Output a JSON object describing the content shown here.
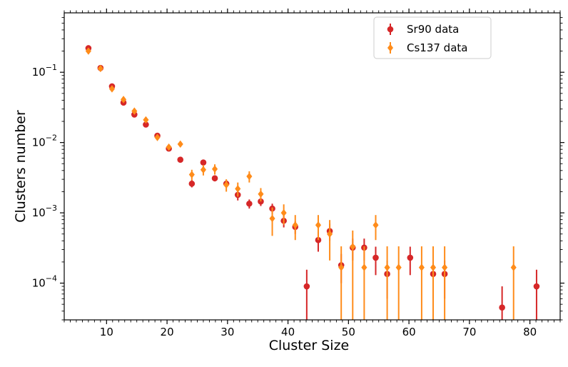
{
  "chart_data": {
    "type": "scatter",
    "title": "",
    "xlabel": "Cluster Size",
    "ylabel": "Clusters number",
    "xscale": "linear",
    "yscale": "log",
    "xlim": [
      3,
      85
    ],
    "ylim": [
      3e-05,
      0.7
    ],
    "xticks": [
      10,
      20,
      30,
      40,
      50,
      60,
      70,
      80
    ],
    "yticks": [
      {
        "value": 0.1,
        "base": "10",
        "exp": "−1"
      },
      {
        "value": 0.01,
        "base": "10",
        "exp": "−2"
      },
      {
        "value": 0.001,
        "base": "10",
        "exp": "−3"
      },
      {
        "value": 0.0001,
        "base": "10",
        "exp": "−4"
      }
    ],
    "grid": false,
    "legend_position": "top-right",
    "series": [
      {
        "name": "Sr90 data",
        "color": "#d62728",
        "marker": "circle",
        "points": [
          {
            "x": 7,
            "y": 0.22,
            "lo": 0.21,
            "hi": 0.23
          },
          {
            "x": 9,
            "y": 0.115,
            "lo": 0.11,
            "hi": 0.12
          },
          {
            "x": 10.9,
            "y": 0.063,
            "lo": 0.06,
            "hi": 0.066
          },
          {
            "x": 12.8,
            "y": 0.037,
            "lo": 0.035,
            "hi": 0.039
          },
          {
            "x": 14.6,
            "y": 0.025,
            "lo": 0.024,
            "hi": 0.026
          },
          {
            "x": 16.5,
            "y": 0.018,
            "lo": 0.017,
            "hi": 0.019
          },
          {
            "x": 18.4,
            "y": 0.0125,
            "lo": 0.012,
            "hi": 0.013
          },
          {
            "x": 20.3,
            "y": 0.0082,
            "lo": 0.0078,
            "hi": 0.0086
          },
          {
            "x": 22.2,
            "y": 0.0057,
            "lo": 0.0054,
            "hi": 0.006
          },
          {
            "x": 24.1,
            "y": 0.0026,
            "lo": 0.0023,
            "hi": 0.0029
          },
          {
            "x": 26,
            "y": 0.0052,
            "lo": 0.0048,
            "hi": 0.0056
          },
          {
            "x": 27.9,
            "y": 0.0031,
            "lo": 0.0028,
            "hi": 0.0034
          },
          {
            "x": 29.8,
            "y": 0.0026,
            "lo": 0.0023,
            "hi": 0.0029
          },
          {
            "x": 31.7,
            "y": 0.0018,
            "lo": 0.0015,
            "hi": 0.0021
          },
          {
            "x": 33.6,
            "y": 0.00135,
            "lo": 0.00115,
            "hi": 0.00155
          },
          {
            "x": 35.5,
            "y": 0.00145,
            "lo": 0.00125,
            "hi": 0.00165
          },
          {
            "x": 37.4,
            "y": 0.00115,
            "lo": 0.00095,
            "hi": 0.00135
          },
          {
            "x": 39.3,
            "y": 0.00077,
            "lo": 0.00062,
            "hi": 0.00092
          },
          {
            "x": 41.2,
            "y": 0.00063,
            "lo": 0.0005,
            "hi": 0.00076
          },
          {
            "x": 43.1,
            "y": 9e-05,
            "lo": 3e-05,
            "hi": 0.000155
          },
          {
            "x": 45,
            "y": 0.00041,
            "lo": 0.00028,
            "hi": 0.00054
          },
          {
            "x": 46.9,
            "y": 0.00055,
            "lo": 0.0004,
            "hi": 0.0007
          },
          {
            "x": 48.8,
            "y": 0.00018,
            "lo": 0.0001,
            "hi": 0.00026
          },
          {
            "x": 50.7,
            "y": 0.00032,
            "lo": 0.00021,
            "hi": 0.00043
          },
          {
            "x": 52.6,
            "y": 0.00032,
            "lo": 0.00021,
            "hi": 0.00043
          },
          {
            "x": 54.5,
            "y": 0.00023,
            "lo": 0.00013,
            "hi": 0.00033
          },
          {
            "x": 56.4,
            "y": 0.000135,
            "lo": 6e-05,
            "hi": 0.00021
          },
          {
            "x": 60.2,
            "y": 0.00023,
            "lo": 0.00013,
            "hi": 0.00033
          },
          {
            "x": 64,
            "y": 0.000135,
            "lo": 6e-05,
            "hi": 0.00021
          },
          {
            "x": 65.9,
            "y": 0.000135,
            "lo": 6e-05,
            "hi": 0.00021
          },
          {
            "x": 75.4,
            "y": 4.5e-05,
            "lo": 3e-05,
            "hi": 9e-05
          },
          {
            "x": 81.1,
            "y": 9e-05,
            "lo": 3e-05,
            "hi": 0.000155
          }
        ]
      },
      {
        "name": "Cs137 data",
        "color": "#ff8c1a",
        "marker": "diamond",
        "points": [
          {
            "x": 7,
            "y": 0.2,
            "lo": 0.19,
            "hi": 0.21
          },
          {
            "x": 9,
            "y": 0.113,
            "lo": 0.108,
            "hi": 0.118
          },
          {
            "x": 10.9,
            "y": 0.058,
            "lo": 0.055,
            "hi": 0.061
          },
          {
            "x": 12.8,
            "y": 0.041,
            "lo": 0.039,
            "hi": 0.043
          },
          {
            "x": 14.6,
            "y": 0.028,
            "lo": 0.026,
            "hi": 0.03
          },
          {
            "x": 16.5,
            "y": 0.021,
            "lo": 0.0198,
            "hi": 0.0222
          },
          {
            "x": 18.4,
            "y": 0.0118,
            "lo": 0.0111,
            "hi": 0.0125
          },
          {
            "x": 20.3,
            "y": 0.0086,
            "lo": 0.008,
            "hi": 0.0092
          },
          {
            "x": 22.2,
            "y": 0.0095,
            "lo": 0.0089,
            "hi": 0.0101
          },
          {
            "x": 24.1,
            "y": 0.0035,
            "lo": 0.0029,
            "hi": 0.0041
          },
          {
            "x": 26,
            "y": 0.0041,
            "lo": 0.0034,
            "hi": 0.0048
          },
          {
            "x": 27.9,
            "y": 0.0042,
            "lo": 0.0035,
            "hi": 0.0049
          },
          {
            "x": 29.8,
            "y": 0.0025,
            "lo": 0.002,
            "hi": 0.003
          },
          {
            "x": 31.7,
            "y": 0.0022,
            "lo": 0.0017,
            "hi": 0.0027
          },
          {
            "x": 33.6,
            "y": 0.0033,
            "lo": 0.0027,
            "hi": 0.0039
          },
          {
            "x": 35.5,
            "y": 0.00185,
            "lo": 0.00145,
            "hi": 0.00225
          },
          {
            "x": 37.4,
            "y": 0.00083,
            "lo": 0.00047,
            "hi": 0.00119
          },
          {
            "x": 39.3,
            "y": 0.001,
            "lo": 0.00068,
            "hi": 0.00132
          },
          {
            "x": 41.2,
            "y": 0.00067,
            "lo": 0.00041,
            "hi": 0.00093
          },
          {
            "x": 45,
            "y": 0.00067,
            "lo": 0.00041,
            "hi": 0.00093
          },
          {
            "x": 46.9,
            "y": 0.0005,
            "lo": 0.00021,
            "hi": 0.00079
          },
          {
            "x": 48.8,
            "y": 0.000167,
            "lo": 3e-05,
            "hi": 0.000334
          },
          {
            "x": 50.7,
            "y": 0.00033,
            "lo": 3e-05,
            "hi": 0.00056
          },
          {
            "x": 52.6,
            "y": 0.000167,
            "lo": 3e-05,
            "hi": 0.000334
          },
          {
            "x": 54.5,
            "y": 0.00067,
            "lo": 0.00041,
            "hi": 0.00093
          },
          {
            "x": 56.4,
            "y": 0.000167,
            "lo": 3e-05,
            "hi": 0.000334
          },
          {
            "x": 58.3,
            "y": 0.000167,
            "lo": 3e-05,
            "hi": 0.000334
          },
          {
            "x": 62.1,
            "y": 0.000167,
            "lo": 3e-05,
            "hi": 0.000334
          },
          {
            "x": 64,
            "y": 0.000167,
            "lo": 3e-05,
            "hi": 0.000334
          },
          {
            "x": 65.9,
            "y": 0.000167,
            "lo": 3e-05,
            "hi": 0.000334
          },
          {
            "x": 77.3,
            "y": 0.000167,
            "lo": 3e-05,
            "hi": 0.000334
          }
        ]
      }
    ]
  }
}
